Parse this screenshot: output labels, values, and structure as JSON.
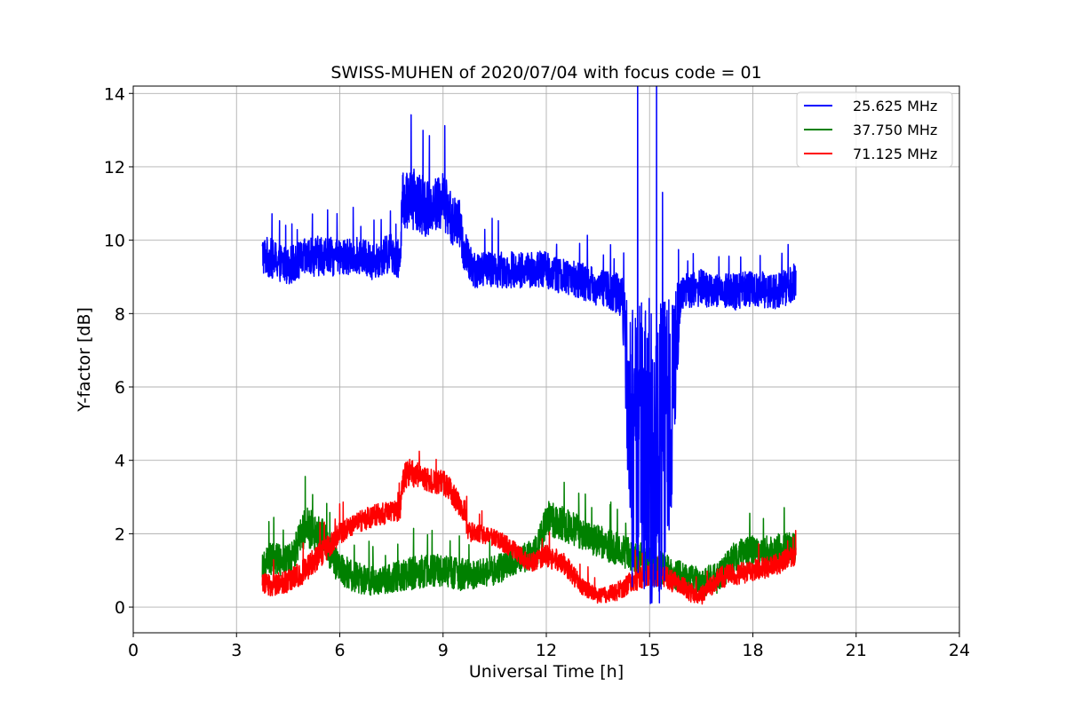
{
  "chart_data": {
    "type": "line",
    "title": "SWISS-MUHEN of 2020/07/04 with focus code = 01",
    "xlabel": "Universal Time [h]",
    "ylabel": "Y-factor [dB]",
    "xlim": [
      0,
      24
    ],
    "ylim": [
      -0.7,
      14.2
    ],
    "xticks": [
      0,
      3,
      6,
      9,
      12,
      15,
      18,
      21,
      24
    ],
    "yticks": [
      0,
      2,
      4,
      6,
      8,
      10,
      12,
      14
    ],
    "grid": true,
    "legend": "top-right",
    "series": [
      {
        "name": "25.625 MHz",
        "color": "#0000ff",
        "x": [
          3.75,
          4.0,
          4.5,
          5.0,
          5.5,
          6.0,
          6.5,
          7.0,
          7.5,
          7.75,
          7.8,
          8.0,
          8.5,
          9.0,
          9.3,
          9.5,
          9.6,
          9.8,
          10.0,
          10.5,
          11.0,
          11.5,
          12.0,
          12.5,
          13.0,
          13.5,
          14.0,
          14.2,
          14.5,
          15.0,
          15.5,
          15.9,
          16.0,
          16.5,
          17.0,
          17.5,
          18.0,
          18.5,
          19.0,
          19.25
        ],
        "y": [
          9.6,
          9.5,
          9.3,
          9.5,
          9.6,
          9.5,
          9.6,
          9.4,
          9.7,
          9.4,
          11.0,
          11.2,
          10.9,
          11.1,
          10.5,
          10.4,
          9.7,
          9.3,
          9.2,
          9.2,
          9.2,
          9.2,
          9.2,
          9.0,
          8.9,
          8.7,
          8.6,
          8.4,
          4.2,
          4.3,
          4.2,
          8.5,
          8.6,
          8.7,
          8.6,
          8.6,
          8.7,
          8.6,
          8.7,
          8.9
        ],
        "noise": [
          0.55,
          0.55,
          0.5,
          0.55,
          0.55,
          0.5,
          0.5,
          0.5,
          0.55,
          0.55,
          0.8,
          0.85,
          0.8,
          0.8,
          0.7,
          0.7,
          0.6,
          0.6,
          0.5,
          0.5,
          0.5,
          0.5,
          0.5,
          0.5,
          0.5,
          0.5,
          0.55,
          0.6,
          4.0,
          4.2,
          4.2,
          0.5,
          0.5,
          0.5,
          0.5,
          0.5,
          0.5,
          0.5,
          0.5,
          0.5
        ]
      },
      {
        "name": "37.750 MHz",
        "color": "#008000",
        "x": [
          3.75,
          4.0,
          4.5,
          4.75,
          5.0,
          5.5,
          6.0,
          6.5,
          7.0,
          7.5,
          8.0,
          8.5,
          9.0,
          9.5,
          10.0,
          10.5,
          11.0,
          11.5,
          11.75,
          12.0,
          12.5,
          13.0,
          13.5,
          14.0,
          14.5,
          15.0,
          15.5,
          16.0,
          16.5,
          17.0,
          17.5,
          18.0,
          18.5,
          19.0,
          19.25
        ],
        "y": [
          1.2,
          1.3,
          1.3,
          1.6,
          2.2,
          1.9,
          1.0,
          0.8,
          0.7,
          0.8,
          0.9,
          1.0,
          1.0,
          0.9,
          0.9,
          1.0,
          1.2,
          1.4,
          1.6,
          2.4,
          2.3,
          2.0,
          1.8,
          1.6,
          1.4,
          1.2,
          1.0,
          0.8,
          0.7,
          0.8,
          1.4,
          1.5,
          1.5,
          1.6,
          1.6
        ],
        "noise": [
          0.4,
          0.45,
          0.45,
          0.5,
          0.55,
          0.5,
          0.45,
          0.45,
          0.4,
          0.4,
          0.45,
          0.45,
          0.45,
          0.45,
          0.4,
          0.4,
          0.4,
          0.4,
          0.45,
          0.5,
          0.5,
          0.45,
          0.45,
          0.45,
          0.45,
          0.45,
          0.45,
          0.4,
          0.4,
          0.45,
          0.45,
          0.45,
          0.45,
          0.45,
          0.45
        ]
      },
      {
        "name": "71.125 MHz",
        "color": "#ff0000",
        "x": [
          3.75,
          4.0,
          4.5,
          5.0,
          5.5,
          6.0,
          6.5,
          7.0,
          7.5,
          7.75,
          7.8,
          8.0,
          8.5,
          9.0,
          9.3,
          9.5,
          9.65,
          9.7,
          10.0,
          10.5,
          11.0,
          11.5,
          12.0,
          12.5,
          13.0,
          13.5,
          14.0,
          14.5,
          15.0,
          15.5,
          16.0,
          16.5,
          17.0,
          17.5,
          18.0,
          18.5,
          19.0,
          19.25
        ],
        "y": [
          0.7,
          0.6,
          0.7,
          1.0,
          1.5,
          2.0,
          2.3,
          2.5,
          2.6,
          2.6,
          3.4,
          3.7,
          3.5,
          3.4,
          3.1,
          2.7,
          2.6,
          2.1,
          2.0,
          1.9,
          1.6,
          1.2,
          1.4,
          1.2,
          0.6,
          0.3,
          0.4,
          0.7,
          0.9,
          0.8,
          0.5,
          0.3,
          0.8,
          0.9,
          1.0,
          1.1,
          1.3,
          1.4
        ],
        "noise": [
          0.3,
          0.3,
          0.3,
          0.35,
          0.35,
          0.3,
          0.3,
          0.3,
          0.3,
          0.3,
          0.4,
          0.4,
          0.35,
          0.35,
          0.35,
          0.35,
          0.3,
          0.3,
          0.25,
          0.25,
          0.25,
          0.25,
          0.3,
          0.3,
          0.25,
          0.2,
          0.25,
          0.3,
          0.3,
          0.3,
          0.3,
          0.25,
          0.3,
          0.3,
          0.3,
          0.3,
          0.3,
          0.3
        ]
      }
    ]
  }
}
